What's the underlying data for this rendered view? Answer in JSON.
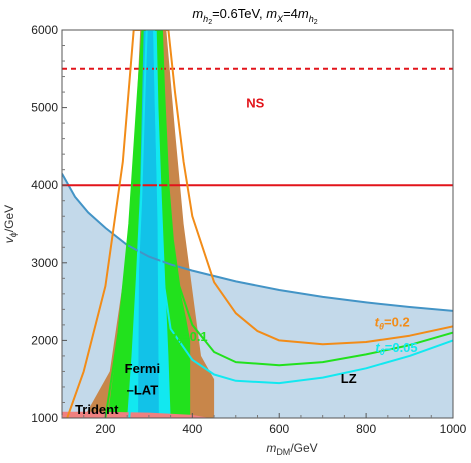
{
  "chart_data": {
    "type": "area",
    "title": "m_h2=0.6TeV, m_X=4m_h2",
    "title_parts": {
      "m1": "m",
      "sub1": "h",
      "sub1b": "2",
      "eq1": "=0.6TeV, ",
      "m2": "m",
      "sub2": "X",
      "eq2": "=4",
      "m3": "m",
      "sub3": "h",
      "sub3b": "2"
    },
    "xlabel": {
      "main": "m",
      "sub": "DM",
      "unit": "/GeV"
    },
    "ylabel": {
      "main": "v",
      "sub": "ϕ",
      "unit": "/GeV"
    },
    "xlim": [
      100,
      1000
    ],
    "ylim": [
      1000,
      6000
    ],
    "xticks": [
      200,
      400,
      600,
      800,
      1000
    ],
    "yticks": [
      1000,
      2000,
      3000,
      4000,
      5000,
      6000
    ],
    "colors": {
      "lz_fill": "#c3d9ea",
      "lz_line": "#4394c6",
      "orange": "#f28c18",
      "brown": "#c8864a",
      "green": "#22e11d",
      "cyan": "#12e8f0",
      "cyan_dark": "#12c2e8",
      "red": "#e2141a",
      "trident": "#f08080"
    },
    "series": [
      {
        "name": "LZ",
        "style": "filled-region-boundary",
        "x": [
          100,
          130,
          160,
          200,
          250,
          300,
          350,
          400,
          450,
          500,
          600,
          700,
          800,
          900,
          1000
        ],
        "y": [
          4150,
          3850,
          3650,
          3450,
          3230,
          3080,
          2980,
          2900,
          2830,
          2760,
          2650,
          2560,
          2490,
          2430,
          2380
        ]
      },
      {
        "name": "NS",
        "style": "dashed",
        "x": [
          100,
          1000
        ],
        "y": [
          5500,
          5500
        ]
      },
      {
        "name": "",
        "style": "solid-red",
        "x": [
          100,
          1000
        ],
        "y": [
          4000,
          4000
        ]
      },
      {
        "name": "t_θ=0.2",
        "x": [
          112,
          150,
          200,
          240,
          265,
          280,
          320,
          345,
          360,
          380,
          400,
          450,
          500,
          550,
          600,
          700,
          800,
          900,
          1000
        ],
        "y": [
          1000,
          1600,
          2700,
          4300,
          6000,
          6000,
          6000,
          6000,
          5200,
          4300,
          3600,
          2750,
          2350,
          2120,
          2000,
          1950,
          1980,
          2060,
          2180
        ]
      },
      {
        "name": "t_θ=0.1",
        "x": [
          200,
          230,
          255,
          275,
          285,
          330,
          335,
          345,
          355,
          370,
          400,
          450,
          500,
          600,
          700,
          800,
          900,
          1000
        ],
        "y": [
          1000,
          2100,
          3500,
          5200,
          6000,
          6000,
          5200,
          4000,
          3300,
          2700,
          2200,
          1850,
          1720,
          1680,
          1720,
          1820,
          1940,
          2100
        ]
      },
      {
        "name": "t_θ=0.05",
        "x": [
          255,
          270,
          282,
          290,
          295,
          312,
          316,
          322,
          330,
          350,
          400,
          450,
          500,
          600,
          700,
          800,
          900,
          1000
        ],
        "y": [
          1000,
          2300,
          3800,
          5200,
          6000,
          6000,
          5000,
          3800,
          2900,
          2150,
          1750,
          1560,
          1480,
          1450,
          1520,
          1640,
          1800,
          2000
        ]
      },
      {
        "name": "Fermi-LAT",
        "style": "band",
        "outer": {
          "x": [
            150,
            210,
            260,
            280,
            290,
            310,
            340,
            360,
            380,
            420,
            450,
            450
          ],
          "y_upper": [
            1000,
            1600,
            3500,
            6000,
            6000,
            6000,
            6000,
            4700,
            3500,
            1800,
            1500,
            1000
          ]
        },
        "middle": {
          "x_range": [
            200,
            390
          ]
        },
        "inner": {
          "x_range": [
            255,
            345
          ]
        },
        "core": {
          "x_range": [
            275,
            322
          ]
        }
      },
      {
        "name": "Trident",
        "style": "filled",
        "x": [
          100,
          180,
          300,
          400,
          440
        ],
        "y": [
          1080,
          1080,
          1070,
          1040,
          1000
        ]
      }
    ],
    "annotations": [
      {
        "text": "NS",
        "x": 545,
        "y": 5000,
        "color": "#e2141a"
      },
      {
        "text": "LZ",
        "x": 760,
        "y": 1450,
        "color": "#000000"
      },
      {
        "text": "Fermi",
        "x": 285,
        "y": 1580,
        "color": "#000000"
      },
      {
        "text": "–LAT",
        "x": 285,
        "y": 1300,
        "color": "#000000"
      },
      {
        "text": "Trident",
        "x": 180,
        "y": 1050,
        "color": "#000000"
      },
      {
        "text": "t_θ=0.2",
        "x": 860,
        "y": 2180,
        "color": "#f28c18"
      },
      {
        "text": "t_θ=0.1",
        "x": 395,
        "y": 1990,
        "color": "#22e11d"
      },
      {
        "text": "t_θ=0.05",
        "x": 870,
        "y": 1850,
        "color": "#12e8f0"
      }
    ],
    "grid": false,
    "legend": "none"
  }
}
